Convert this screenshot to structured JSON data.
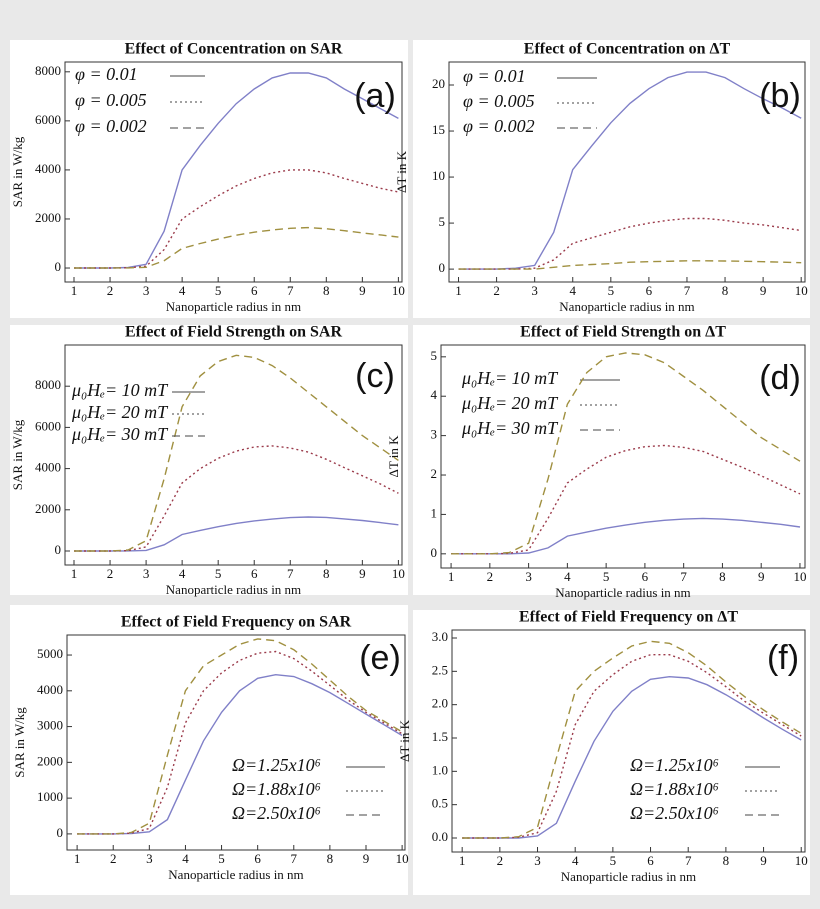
{
  "chart_data": [
    {
      "type": "line",
      "title": "Effect of Concentration on SAR",
      "panel_label": "(a)",
      "xlabel": "Nanoparticle radius in nm",
      "ylabel": "SAR in W/kg",
      "x": [
        1,
        1.5,
        2,
        2.5,
        3,
        3.5,
        4,
        4.5,
        5,
        5.5,
        6,
        6.5,
        7,
        7.5,
        8,
        8.5,
        9,
        9.5,
        10
      ],
      "xlim": [
        0.75,
        10.1
      ],
      "xticks": [
        1,
        2,
        3,
        4,
        5,
        6,
        7,
        8,
        9,
        10
      ],
      "ylim": [
        -570,
        8400
      ],
      "yticks": [
        0,
        2000,
        4000,
        6000,
        8000
      ],
      "series": [
        {
          "name": "φ = 0.01",
          "color": "#8080c8",
          "style": "solid",
          "values": [
            0,
            0,
            0,
            20,
            150,
            1500,
            4000,
            5000,
            5900,
            6700,
            7300,
            7750,
            7950,
            7950,
            7750,
            7300,
            6900,
            6500,
            6100
          ]
        },
        {
          "name": "φ = 0.005",
          "color": "#9b3b4b",
          "style": "dotted",
          "values": [
            0,
            0,
            0,
            10,
            75,
            750,
            2000,
            2500,
            2950,
            3350,
            3650,
            3880,
            4000,
            4000,
            3880,
            3650,
            3450,
            3250,
            3100
          ]
        },
        {
          "name": "φ = 0.002",
          "color": "#a09040",
          "style": "dashed",
          "values": [
            0,
            0,
            0,
            5,
            30,
            300,
            800,
            1000,
            1180,
            1340,
            1460,
            1550,
            1620,
            1650,
            1600,
            1520,
            1430,
            1350,
            1260
          ]
        }
      ]
    },
    {
      "type": "line",
      "title": "Effect of Concentration on ΔT",
      "panel_label": "(b)",
      "xlabel": "Nanoparticle radius in nm",
      "ylabel": "ΔT in K",
      "x": [
        1,
        1.5,
        2,
        2.5,
        3,
        3.5,
        4,
        4.5,
        5,
        5.5,
        6,
        6.5,
        7,
        7.5,
        8,
        8.5,
        9,
        9.5,
        10
      ],
      "xlim": [
        0.75,
        10.1
      ],
      "xticks": [
        1,
        2,
        3,
        4,
        5,
        6,
        7,
        8,
        9,
        10
      ],
      "ylim": [
        -1.4,
        22.5
      ],
      "yticks": [
        0,
        5,
        10,
        15,
        20
      ],
      "series": [
        {
          "name": "φ = 0.01",
          "color": "#8080c8",
          "style": "solid",
          "values": [
            0,
            0,
            0,
            0.1,
            0.4,
            4,
            10.8,
            13.4,
            15.9,
            18,
            19.6,
            20.8,
            21.4,
            21.4,
            20.8,
            19.6,
            18.5,
            17.5,
            16.4
          ]
        },
        {
          "name": "φ = 0.005",
          "color": "#9b3b4b",
          "style": "dotted",
          "values": [
            0,
            0,
            0,
            0,
            0.1,
            1,
            2.8,
            3.4,
            4,
            4.6,
            5,
            5.3,
            5.5,
            5.5,
            5.3,
            5,
            4.8,
            4.5,
            4.2
          ]
        },
        {
          "name": "φ = 0.002",
          "color": "#a09040",
          "style": "dashed",
          "values": [
            0,
            0,
            0,
            0,
            0,
            0.2,
            0.4,
            0.5,
            0.6,
            0.75,
            0.8,
            0.85,
            0.9,
            0.9,
            0.88,
            0.85,
            0.8,
            0.75,
            0.7
          ]
        }
      ]
    },
    {
      "type": "line",
      "title": "Effect of Field Strength on SAR",
      "panel_label": "(c)",
      "xlabel": "Nanoparticle radius in nm",
      "ylabel": "SAR in W/kg",
      "x": [
        1,
        1.5,
        2,
        2.5,
        3,
        3.5,
        4,
        4.5,
        5,
        5.5,
        6,
        6.5,
        7,
        7.5,
        8,
        8.5,
        9,
        9.5,
        10
      ],
      "xlim": [
        0.75,
        10.1
      ],
      "xticks": [
        1,
        2,
        3,
        4,
        5,
        6,
        7,
        8,
        9,
        10
      ],
      "ylim": [
        -680,
        10000
      ],
      "yticks": [
        0,
        2000,
        4000,
        6000,
        8000
      ],
      "series": [
        {
          "name": "μ₀Hₑ= 10 mT",
          "color": "#8080c8",
          "style": "solid",
          "values": [
            0,
            0,
            0,
            5,
            30,
            300,
            800,
            1000,
            1180,
            1340,
            1460,
            1550,
            1620,
            1650,
            1630,
            1560,
            1480,
            1380,
            1270
          ]
        },
        {
          "name": "μ₀Hₑ= 20 mT",
          "color": "#9b3b4b",
          "style": "dotted",
          "values": [
            0,
            0,
            0,
            20,
            200,
            1700,
            3300,
            4000,
            4500,
            4850,
            5050,
            5100,
            5000,
            4800,
            4450,
            4050,
            3650,
            3250,
            2800
          ]
        },
        {
          "name": "μ₀Hₑ= 30 mT",
          "color": "#a09040",
          "style": "dashed",
          "values": [
            0,
            0,
            0,
            50,
            500,
            3500,
            7000,
            8500,
            9200,
            9500,
            9400,
            9000,
            8400,
            7700,
            7000,
            6300,
            5600,
            5000,
            4400
          ]
        }
      ]
    },
    {
      "type": "line",
      "title": "Effect of Field Strength on ΔT",
      "panel_label": "(d)",
      "xlabel": "Nanoparticle radius in nm",
      "ylabel": "ΔT in K",
      "x": [
        1,
        1.5,
        2,
        2.5,
        3,
        3.5,
        4,
        4.5,
        5,
        5.5,
        6,
        6.5,
        7,
        7.5,
        8,
        8.5,
        9,
        9.5,
        10
      ],
      "xlim": [
        0.74,
        10.13
      ],
      "xticks": [
        1,
        2,
        3,
        4,
        5,
        6,
        7,
        8,
        9,
        10
      ],
      "ylim": [
        -0.36,
        5.3
      ],
      "yticks": [
        0,
        1,
        2,
        3,
        4,
        5
      ],
      "series": [
        {
          "name": "μ₀Hₑ= 10 mT",
          "color": "#8080c8",
          "style": "solid",
          "values": [
            0,
            0,
            0,
            0,
            0.02,
            0.15,
            0.45,
            0.55,
            0.65,
            0.73,
            0.8,
            0.85,
            0.88,
            0.9,
            0.88,
            0.85,
            0.8,
            0.75,
            0.68
          ]
        },
        {
          "name": "μ₀Hₑ= 20 mT",
          "color": "#9b3b4b",
          "style": "dotted",
          "values": [
            0,
            0,
            0,
            0.01,
            0.1,
            0.9,
            1.8,
            2.15,
            2.45,
            2.62,
            2.72,
            2.75,
            2.7,
            2.6,
            2.4,
            2.2,
            1.98,
            1.75,
            1.52
          ]
        },
        {
          "name": "μ₀Hₑ= 30 mT",
          "color": "#a09040",
          "style": "dashed",
          "values": [
            0,
            0,
            0,
            0.03,
            0.27,
            1.9,
            3.8,
            4.6,
            5,
            5.1,
            5.05,
            4.85,
            4.5,
            4.15,
            3.75,
            3.35,
            2.95,
            2.65,
            2.35
          ]
        }
      ]
    },
    {
      "type": "line",
      "title": "Effect of Field Frequency on SAR",
      "panel_label": "(e)",
      "xlabel": "Nanoparticle radius in nm",
      "ylabel": "SAR in W/kg",
      "x": [
        1,
        1.5,
        2,
        2.5,
        3,
        3.5,
        4,
        4.5,
        5,
        5.5,
        6,
        6.5,
        7,
        7.5,
        8,
        8.5,
        9,
        9.5,
        10
      ],
      "xlim": [
        0.72,
        10.08
      ],
      "xticks": [
        1,
        2,
        3,
        4,
        5,
        6,
        7,
        8,
        9,
        10
      ],
      "ylim": [
        -450,
        5560
      ],
      "yticks": [
        0,
        1000,
        2000,
        3000,
        4000,
        5000
      ],
      "series": [
        {
          "name": "Ω=1.25x10⁶",
          "color": "#8080c8",
          "style": "solid",
          "values": [
            0,
            0,
            0,
            10,
            60,
            400,
            1500,
            2600,
            3400,
            4000,
            4350,
            4450,
            4400,
            4200,
            3950,
            3650,
            3350,
            3050,
            2750
          ]
        },
        {
          "name": "Ω=1.88x10⁶",
          "color": "#9b3b4b",
          "style": "dotted",
          "values": [
            0,
            0,
            0,
            20,
            150,
            1300,
            3100,
            4000,
            4500,
            4850,
            5050,
            5100,
            4900,
            4550,
            4150,
            3750,
            3400,
            3100,
            2800
          ]
        },
        {
          "name": "Ω=2.50x10⁶",
          "color": "#a09040",
          "style": "dashed",
          "values": [
            0,
            0,
            0,
            40,
            300,
            2200,
            4000,
            4700,
            5000,
            5300,
            5450,
            5400,
            5150,
            4750,
            4300,
            3850,
            3450,
            3150,
            2850
          ]
        }
      ]
    },
    {
      "type": "line",
      "title": "Effect of Field Frequency on ΔT",
      "panel_label": "(f)",
      "xlabel": "Nanoparticle radius in nm",
      "ylabel": "ΔT in K",
      "x": [
        1,
        1.5,
        2,
        2.5,
        3,
        3.5,
        4,
        4.5,
        5,
        5.5,
        6,
        6.5,
        7,
        7.5,
        8,
        8.5,
        9,
        9.5,
        10
      ],
      "xlim": [
        0.73,
        10.1
      ],
      "xticks": [
        1,
        2,
        3,
        4,
        5,
        6,
        7,
        8,
        9,
        10
      ],
      "ylim": [
        -0.21,
        3.12
      ],
      "yticks": [
        {
          "value": 0,
          "label": "0.0"
        },
        0.5,
        {
          "value": 1,
          "label": "1.0"
        },
        1.5,
        {
          "value": 2,
          "label": "2.0"
        },
        2.5,
        {
          "value": 3,
          "label": "3.0"
        }
      ],
      "series": [
        {
          "name": "Ω=1.25x10⁶",
          "color": "#8080c8",
          "style": "solid",
          "values": [
            0,
            0,
            0,
            0,
            0.03,
            0.22,
            0.85,
            1.45,
            1.9,
            2.2,
            2.38,
            2.42,
            2.4,
            2.3,
            2.15,
            1.98,
            1.8,
            1.63,
            1.47
          ]
        },
        {
          "name": "Ω=1.88x10⁶",
          "color": "#9b3b4b",
          "style": "dotted",
          "values": [
            0,
            0,
            0,
            0.01,
            0.08,
            0.7,
            1.7,
            2.2,
            2.45,
            2.65,
            2.75,
            2.75,
            2.65,
            2.48,
            2.27,
            2.05,
            1.87,
            1.7,
            1.53
          ]
        },
        {
          "name": "Ω=2.50x10⁶",
          "color": "#a09040",
          "style": "dashed",
          "values": [
            0,
            0,
            0,
            0.02,
            0.16,
            1.2,
            2.2,
            2.5,
            2.7,
            2.88,
            2.95,
            2.92,
            2.78,
            2.58,
            2.34,
            2.12,
            1.92,
            1.74,
            1.57
          ]
        }
      ]
    }
  ]
}
